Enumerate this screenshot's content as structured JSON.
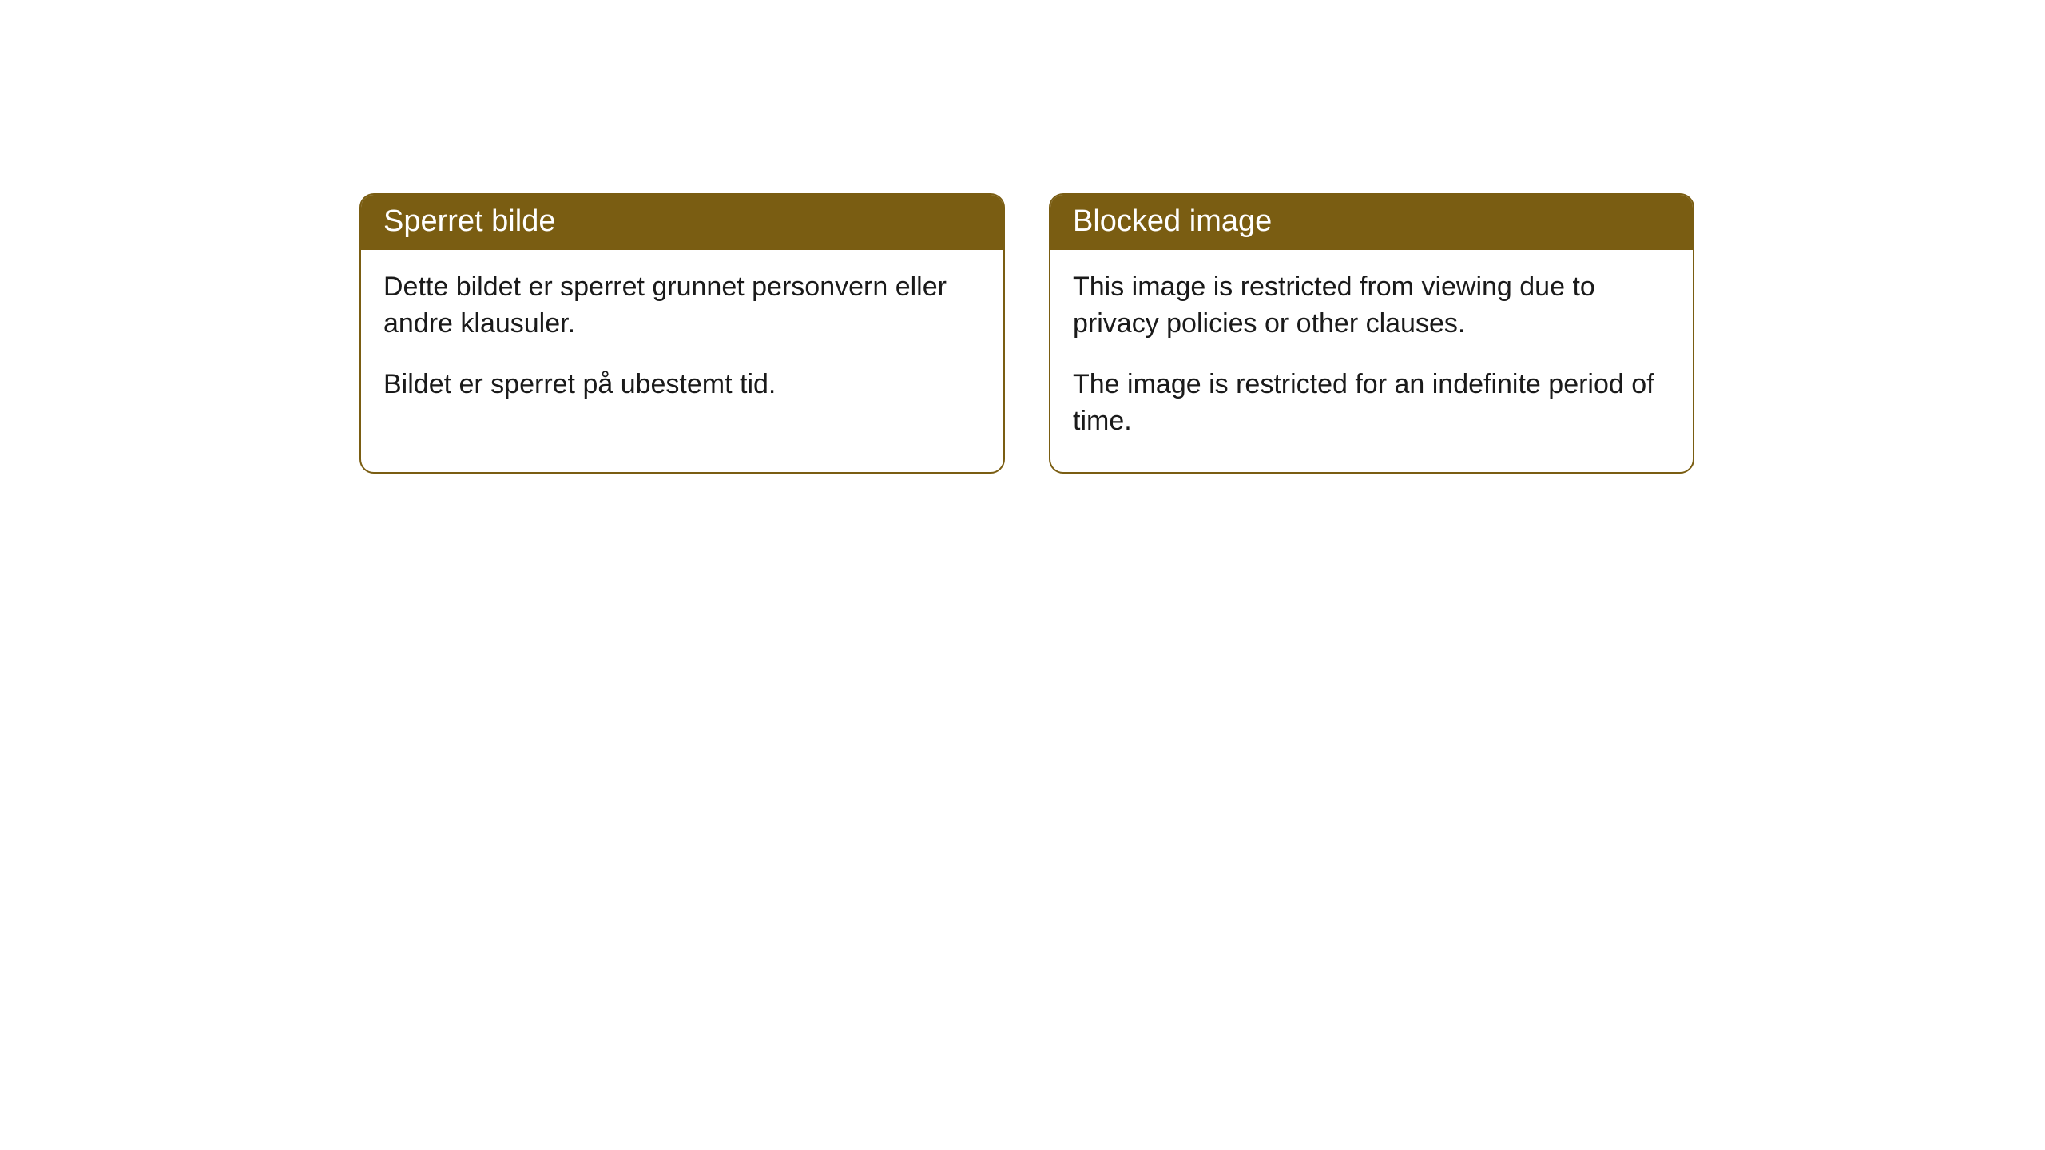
{
  "cards": [
    {
      "title": "Sperret bilde",
      "paragraph1": "Dette bildet er sperret grunnet personvern eller andre klausuler.",
      "paragraph2": "Bildet er sperret på ubestemt tid."
    },
    {
      "title": "Blocked image",
      "paragraph1": "This image is restricted from viewing due to privacy policies or other clauses.",
      "paragraph2": "The image is restricted for an indefinite period of time."
    }
  ],
  "style": {
    "header_bg": "#7a5d12",
    "header_text_color": "#ffffff",
    "border_color": "#7a5d12",
    "body_text_color": "#1a1a1a",
    "background_color": "#ffffff",
    "border_radius": 18,
    "title_fontsize": 38,
    "body_fontsize": 34
  }
}
